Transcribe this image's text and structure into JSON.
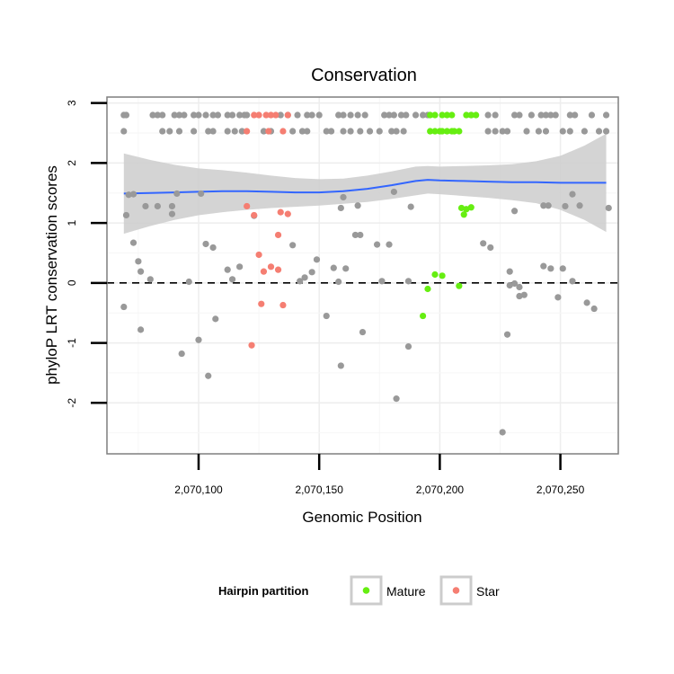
{
  "chart_data": {
    "type": "scatter",
    "title": "Conservation",
    "xlabel": "Genomic Position",
    "ylabel": "phyloP LRT conservation scores",
    "xlim": [
      2070062,
      2070274
    ],
    "ylim": [
      -2.85,
      3.1
    ],
    "x_ticks": [
      2070100,
      2070150,
      2070200,
      2070250
    ],
    "x_tick_labels": [
      "2,070,100",
      "2,070,150",
      "2,070,200",
      "2,070,250"
    ],
    "y_ticks": [
      -2,
      -1,
      0,
      1,
      2,
      3
    ],
    "y_tick_labels": [
      "-2",
      "-1",
      "0",
      "1",
      "2",
      "3"
    ],
    "grid": true,
    "reference_line": {
      "y": 0,
      "style": "dashed"
    },
    "legend": {
      "title": "Hairpin partition",
      "position": "bottom",
      "entries": [
        {
          "label": "Mature",
          "color": "#66ee11"
        },
        {
          "label": "Star",
          "color": "#f57e72"
        }
      ]
    },
    "colors": {
      "other": "#999999",
      "Mature": "#66ee11",
      "Star": "#f57e72",
      "smooth_line": "#3366ff",
      "smooth_band": "#cccccc",
      "reference_line": "#000000"
    },
    "smooth": {
      "x": [
        2070069,
        2070080,
        2070090,
        2070100,
        2070110,
        2070120,
        2070130,
        2070140,
        2070150,
        2070160,
        2070170,
        2070180,
        2070190,
        2070195,
        2070200,
        2070210,
        2070220,
        2070230,
        2070240,
        2070250,
        2070260,
        2070269
      ],
      "y": [
        1.49,
        1.5,
        1.51,
        1.52,
        1.53,
        1.53,
        1.52,
        1.51,
        1.51,
        1.53,
        1.57,
        1.63,
        1.7,
        1.72,
        1.71,
        1.7,
        1.69,
        1.68,
        1.68,
        1.67,
        1.67,
        1.67
      ],
      "lower": [
        0.82,
        0.95,
        1.05,
        1.13,
        1.18,
        1.22,
        1.25,
        1.27,
        1.29,
        1.32,
        1.35,
        1.4,
        1.46,
        1.49,
        1.48,
        1.45,
        1.42,
        1.38,
        1.33,
        1.22,
        1.05,
        0.85
      ],
      "upper": [
        2.16,
        2.05,
        1.97,
        1.91,
        1.88,
        1.84,
        1.79,
        1.75,
        1.73,
        1.74,
        1.79,
        1.86,
        1.94,
        1.95,
        1.94,
        1.95,
        1.96,
        1.98,
        2.03,
        2.12,
        2.29,
        2.49
      ]
    },
    "series": [
      {
        "name": "",
        "color_key": "other",
        "points": [
          [
            2070069,
            2.8
          ],
          [
            2070070,
            2.8
          ],
          [
            2070081,
            2.8
          ],
          [
            2070083,
            2.8
          ],
          [
            2070085,
            2.8
          ],
          [
            2070090,
            2.8
          ],
          [
            2070092,
            2.8
          ],
          [
            2070094,
            2.8
          ],
          [
            2070098,
            2.8
          ],
          [
            2070100,
            2.8
          ],
          [
            2070103,
            2.8
          ],
          [
            2070106,
            2.8
          ],
          [
            2070108,
            2.8
          ],
          [
            2070112,
            2.8
          ],
          [
            2070114,
            2.8
          ],
          [
            2070117,
            2.8
          ],
          [
            2070119,
            2.8
          ],
          [
            2070120,
            2.8
          ],
          [
            2070134,
            2.8
          ],
          [
            2070137,
            2.8
          ],
          [
            2070141,
            2.8
          ],
          [
            2070145,
            2.8
          ],
          [
            2070147,
            2.8
          ],
          [
            2070150,
            2.8
          ],
          [
            2070158,
            2.8
          ],
          [
            2070160,
            2.8
          ],
          [
            2070163,
            2.8
          ],
          [
            2070166,
            2.8
          ],
          [
            2070169,
            2.8
          ],
          [
            2070177,
            2.8
          ],
          [
            2070179,
            2.8
          ],
          [
            2070181,
            2.8
          ],
          [
            2070184,
            2.8
          ],
          [
            2070186,
            2.8
          ],
          [
            2070190,
            2.8
          ],
          [
            2070193,
            2.8
          ],
          [
            2070195,
            2.8
          ],
          [
            2070213,
            2.8
          ],
          [
            2070220,
            2.8
          ],
          [
            2070223,
            2.8
          ],
          [
            2070231,
            2.8
          ],
          [
            2070233,
            2.8
          ],
          [
            2070238,
            2.8
          ],
          [
            2070242,
            2.8
          ],
          [
            2070244,
            2.8
          ],
          [
            2070246,
            2.8
          ],
          [
            2070248,
            2.8
          ],
          [
            2070254,
            2.8
          ],
          [
            2070256,
            2.8
          ],
          [
            2070263,
            2.8
          ],
          [
            2070269,
            2.8
          ],
          [
            2070069,
            2.53
          ],
          [
            2070085,
            2.53
          ],
          [
            2070088,
            2.53
          ],
          [
            2070092,
            2.53
          ],
          [
            2070098,
            2.53
          ],
          [
            2070104,
            2.53
          ],
          [
            2070106,
            2.53
          ],
          [
            2070112,
            2.53
          ],
          [
            2070115,
            2.53
          ],
          [
            2070118,
            2.53
          ],
          [
            2070127,
            2.53
          ],
          [
            2070130,
            2.53
          ],
          [
            2070139,
            2.53
          ],
          [
            2070143,
            2.53
          ],
          [
            2070145,
            2.53
          ],
          [
            2070153,
            2.53
          ],
          [
            2070155,
            2.53
          ],
          [
            2070160,
            2.53
          ],
          [
            2070163,
            2.53
          ],
          [
            2070167,
            2.53
          ],
          [
            2070171,
            2.53
          ],
          [
            2070175,
            2.53
          ],
          [
            2070180,
            2.53
          ],
          [
            2070182,
            2.53
          ],
          [
            2070185,
            2.53
          ],
          [
            2070220,
            2.53
          ],
          [
            2070223,
            2.53
          ],
          [
            2070226,
            2.53
          ],
          [
            2070228,
            2.53
          ],
          [
            2070236,
            2.53
          ],
          [
            2070241,
            2.53
          ],
          [
            2070244,
            2.53
          ],
          [
            2070251,
            2.53
          ],
          [
            2070254,
            2.53
          ],
          [
            2070260,
            2.53
          ],
          [
            2070266,
            2.53
          ],
          [
            2070269,
            2.53
          ],
          [
            2070071,
            1.47
          ],
          [
            2070073,
            1.48
          ],
          [
            2070091,
            1.49
          ],
          [
            2070101,
            1.49
          ],
          [
            2070181,
            1.52
          ],
          [
            2070255,
            1.48
          ],
          [
            2070070,
            1.13
          ],
          [
            2070078,
            1.28
          ],
          [
            2070083,
            1.28
          ],
          [
            2070089,
            1.15
          ],
          [
            2070089,
            1.28
          ],
          [
            2070123,
            1.12
          ],
          [
            2070159,
            1.25
          ],
          [
            2070160,
            1.43
          ],
          [
            2070166,
            1.29
          ],
          [
            2070188,
            1.27
          ],
          [
            2070231,
            1.2
          ],
          [
            2070243,
            1.29
          ],
          [
            2070245,
            1.29
          ],
          [
            2070252,
            1.28
          ],
          [
            2070258,
            1.29
          ],
          [
            2070270,
            1.25
          ],
          [
            2070073,
            0.67
          ],
          [
            2070075,
            0.36
          ],
          [
            2070076,
            0.19
          ],
          [
            2070080,
            0.06
          ],
          [
            2070103,
            0.65
          ],
          [
            2070106,
            0.59
          ],
          [
            2070112,
            0.22
          ],
          [
            2070114,
            0.06
          ],
          [
            2070117,
            0.27
          ],
          [
            2070139,
            0.63
          ],
          [
            2070142,
            0.03
          ],
          [
            2070144,
            0.09
          ],
          [
            2070147,
            0.18
          ],
          [
            2070149,
            0.39
          ],
          [
            2070156,
            0.25
          ],
          [
            2070158,
            0.02
          ],
          [
            2070161,
            0.24
          ],
          [
            2070165,
            0.8
          ],
          [
            2070167,
            0.8
          ],
          [
            2070174,
            0.64
          ],
          [
            2070176,
            0.03
          ],
          [
            2070179,
            0.64
          ],
          [
            2070187,
            0.03
          ],
          [
            2070218,
            0.66
          ],
          [
            2070221,
            0.59
          ],
          [
            2070229,
            0.19
          ],
          [
            2070229,
            -0.04
          ],
          [
            2070231,
            -0.01
          ],
          [
            2070233,
            -0.07
          ],
          [
            2070235,
            -0.2
          ],
          [
            2070243,
            0.28
          ],
          [
            2070246,
            0.24
          ],
          [
            2070249,
            -0.24
          ],
          [
            2070251,
            0.24
          ],
          [
            2070255,
            0.03
          ],
          [
            2070261,
            -0.33
          ],
          [
            2070264,
            -0.43
          ],
          [
            2070069,
            -0.4
          ],
          [
            2070076,
            -0.78
          ],
          [
            2070093,
            -1.18
          ],
          [
            2070096,
            0.02
          ],
          [
            2070100,
            -0.95
          ],
          [
            2070104,
            -1.55
          ],
          [
            2070107,
            -0.6
          ],
          [
            2070153,
            -0.55
          ],
          [
            2070159,
            -1.38
          ],
          [
            2070168,
            -0.82
          ],
          [
            2070182,
            -1.93
          ],
          [
            2070187,
            -1.06
          ],
          [
            2070226,
            -2.49
          ],
          [
            2070228,
            -0.86
          ],
          [
            2070233,
            -0.22
          ]
        ]
      },
      {
        "name": "Mature",
        "color_key": "Mature",
        "points": [
          [
            2070196,
            2.8
          ],
          [
            2070198,
            2.8
          ],
          [
            2070201,
            2.8
          ],
          [
            2070203,
            2.8
          ],
          [
            2070205,
            2.8
          ],
          [
            2070211,
            2.8
          ],
          [
            2070213,
            2.8
          ],
          [
            2070215,
            2.8
          ],
          [
            2070196,
            2.53
          ],
          [
            2070198,
            2.53
          ],
          [
            2070200,
            2.53
          ],
          [
            2070201,
            2.53
          ],
          [
            2070203,
            2.53
          ],
          [
            2070205,
            2.53
          ],
          [
            2070206,
            2.53
          ],
          [
            2070208,
            2.53
          ],
          [
            2070209,
            1.25
          ],
          [
            2070210,
            1.14
          ],
          [
            2070211,
            1.23
          ],
          [
            2070213,
            1.26
          ],
          [
            2070195,
            -0.1
          ],
          [
            2070198,
            0.14
          ],
          [
            2070201,
            0.12
          ],
          [
            2070208,
            -0.05
          ],
          [
            2070193,
            -0.55
          ]
        ]
      },
      {
        "name": "Star",
        "color_key": "Star",
        "points": [
          [
            2070123,
            2.8
          ],
          [
            2070125,
            2.8
          ],
          [
            2070128,
            2.8
          ],
          [
            2070130,
            2.8
          ],
          [
            2070132,
            2.8
          ],
          [
            2070137,
            2.8
          ],
          [
            2070120,
            2.53
          ],
          [
            2070129,
            2.53
          ],
          [
            2070135,
            2.53
          ],
          [
            2070120,
            1.28
          ],
          [
            2070123,
            1.13
          ],
          [
            2070134,
            1.18
          ],
          [
            2070137,
            1.15
          ],
          [
            2070133,
            0.8
          ],
          [
            2070125,
            0.47
          ],
          [
            2070127,
            0.19
          ],
          [
            2070130,
            0.27
          ],
          [
            2070133,
            0.22
          ],
          [
            2070126,
            -0.35
          ],
          [
            2070135,
            -0.37
          ],
          [
            2070122,
            -1.04
          ]
        ]
      }
    ]
  }
}
